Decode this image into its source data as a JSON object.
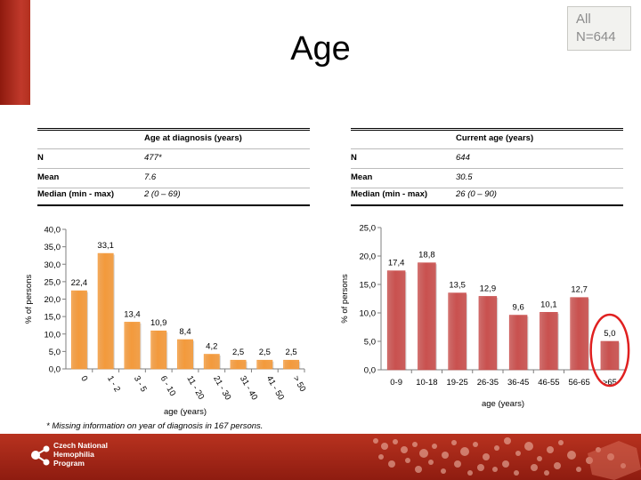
{
  "title": "Age",
  "badge": {
    "line1": "All",
    "line2": "N=644"
  },
  "left_table": {
    "header": "Age at diagnosis (years)",
    "rows": [
      {
        "label": "N",
        "value": "477*"
      },
      {
        "label": "Mean",
        "value": "7.6"
      },
      {
        "label": "Median (min - max)",
        "value": "2 (0 – 69)"
      }
    ]
  },
  "right_table": {
    "header": "Current age (years)",
    "rows": [
      {
        "label": "N",
        "value": "644"
      },
      {
        "label": "Mean",
        "value": "30.5"
      },
      {
        "label": "Median (min - max)",
        "value": "26 (0 – 90)"
      }
    ]
  },
  "footnote": "* Missing information on year of diagnosis in 167 persons.",
  "footer": {
    "org_line1": "Czech National",
    "org_line2": "Hemophilia",
    "org_line3": "Program"
  },
  "colors": {
    "left_bar": "#f39a3c",
    "right_bar": "#c9514f",
    "highlight": "#e02020"
  },
  "chart_data": [
    {
      "type": "bar",
      "categories": [
        "0",
        "1 - 2",
        "3 - 5",
        "6 - 10",
        "11 - 20",
        "21 - 30",
        "31 - 40",
        "41 - 50",
        "> 50"
      ],
      "values": [
        22.4,
        33.1,
        13.4,
        10.9,
        8.4,
        4.2,
        2.5,
        2.5,
        2.5
      ],
      "value_labels": [
        "22,4",
        "33,1",
        "13,4",
        "10,9",
        "8,4",
        "4,2",
        "2,5",
        "2,5",
        "2,5"
      ],
      "yticks": [
        "0,0",
        "5,0",
        "10,0",
        "15,0",
        "20,0",
        "25,0",
        "30,0",
        "35,0",
        "40,0"
      ],
      "ylim": [
        0,
        40
      ],
      "xlabel": "age (years)",
      "ylabel": "% of persons",
      "grid": false,
      "rotated_xticks": true
    },
    {
      "type": "bar",
      "categories": [
        "0-9",
        "10-18",
        "19-25",
        "26-35",
        "36-45",
        "46-55",
        "56-65",
        ">65"
      ],
      "values": [
        17.4,
        18.8,
        13.5,
        12.9,
        9.6,
        10.1,
        12.7,
        5.0
      ],
      "value_labels": [
        "17,4",
        "18,8",
        "13,5",
        "12,9",
        "9,6",
        "10,1",
        "12,7",
        "5,0"
      ],
      "yticks": [
        "0,0",
        "5,0",
        "10,0",
        "15,0",
        "20,0",
        "25,0"
      ],
      "ylim": [
        0,
        25
      ],
      "xlabel": "age (years)",
      "ylabel": "% of persons",
      "grid": false,
      "highlighted_category": ">65"
    }
  ]
}
